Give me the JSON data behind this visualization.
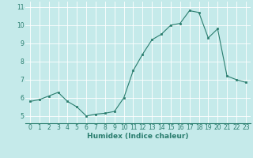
{
  "xlabel": "Humidex (Indice chaleur)",
  "x": [
    0,
    1,
    2,
    3,
    4,
    5,
    6,
    7,
    8,
    9,
    10,
    11,
    12,
    13,
    14,
    15,
    16,
    17,
    18,
    19,
    20,
    21,
    22,
    23
  ],
  "y": [
    5.8,
    5.9,
    6.1,
    6.3,
    5.8,
    5.5,
    5.0,
    5.1,
    5.15,
    5.25,
    6.0,
    7.5,
    8.4,
    9.2,
    9.5,
    10.0,
    10.1,
    10.8,
    10.7,
    9.3,
    9.8,
    7.2,
    7.0,
    6.85
  ],
  "line_color": "#2a7d6e",
  "marker_color": "#2a7d6e",
  "bg_color": "#c5eaea",
  "grid_color": "#ffffff",
  "xlim": [
    -0.5,
    23.5
  ],
  "ylim": [
    4.6,
    11.3
  ],
  "yticks": [
    5,
    6,
    7,
    8,
    9,
    10,
    11
  ],
  "xticks": [
    0,
    1,
    2,
    3,
    4,
    5,
    6,
    7,
    8,
    9,
    10,
    11,
    12,
    13,
    14,
    15,
    16,
    17,
    18,
    19,
    20,
    21,
    22,
    23
  ],
  "xlabel_color": "#2a7d6e",
  "tick_color": "#2a7d6e",
  "label_fontsize": 6.5,
  "tick_fontsize": 5.5,
  "linewidth": 0.8,
  "markersize": 2.0
}
